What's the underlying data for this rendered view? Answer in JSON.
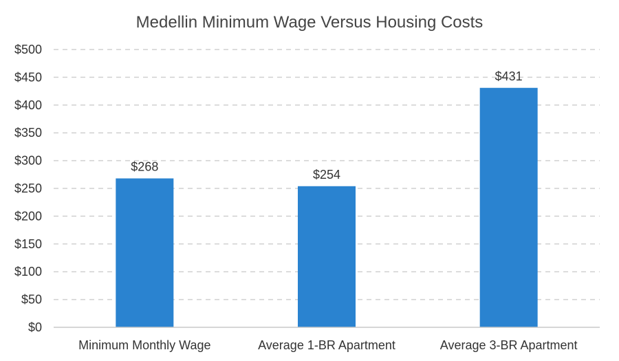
{
  "chart_data": {
    "type": "bar",
    "title": "Medellin Minimum Wage Versus Housing Costs",
    "categories": [
      "Minimum Monthly Wage",
      "Average 1-BR Apartment",
      "Average 3-BR Apartment"
    ],
    "values": [
      268,
      254,
      431
    ],
    "data_labels": [
      "$268",
      "$254",
      "$431"
    ],
    "y_ticks": [
      0,
      50,
      100,
      150,
      200,
      250,
      300,
      350,
      400,
      450,
      500
    ],
    "y_tick_labels": [
      "$0",
      "$50",
      "$100",
      "$150",
      "$200",
      "$250",
      "$300",
      "$350",
      "$400",
      "$450",
      "$500"
    ],
    "ylim": [
      0,
      500
    ],
    "xlabel": "",
    "ylabel": "",
    "grid": true,
    "legend": "none",
    "bar_color": "#2a83d0"
  }
}
